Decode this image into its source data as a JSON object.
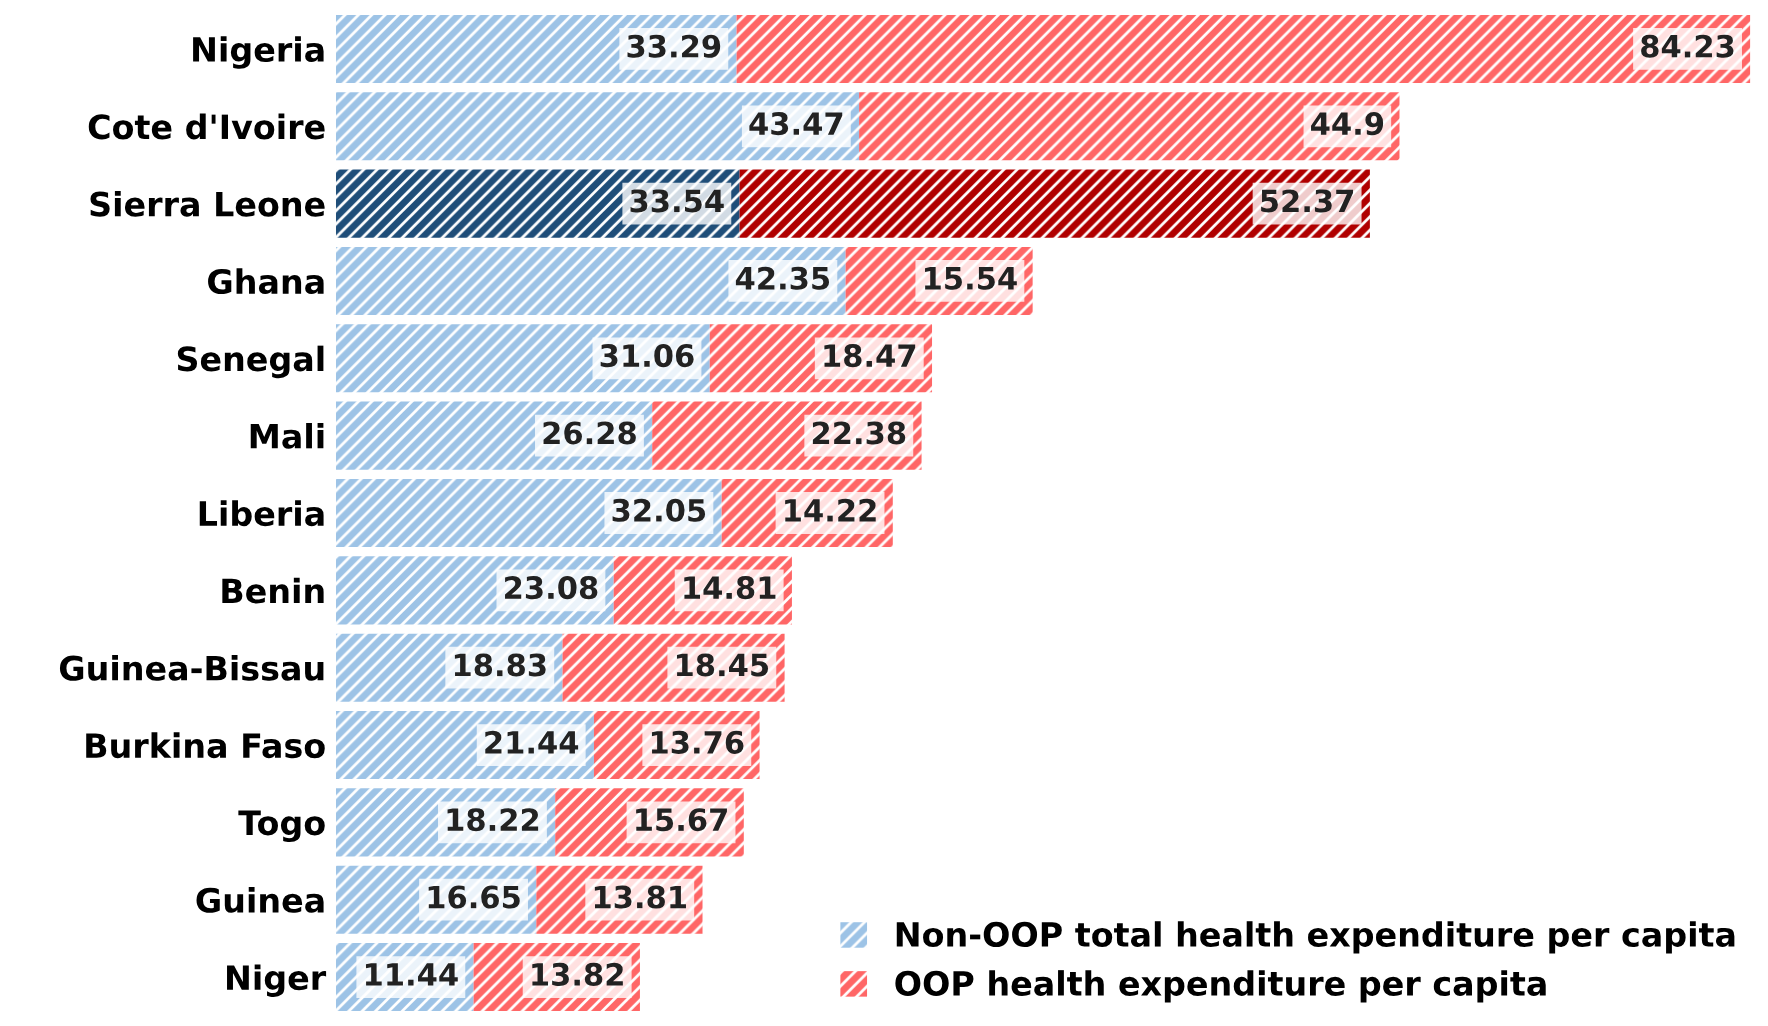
{
  "chart_data": {
    "type": "bar",
    "orientation": "horizontal",
    "stacked": true,
    "data_labels": true,
    "legend": "bottom right",
    "grid": false,
    "tick_labels": "y",
    "categories": [
      "Nigeria",
      "Cote d'Ivoire",
      "Sierra Leone",
      "Ghana",
      "Senegal",
      "Mali",
      "Liberia",
      "Benin",
      "Guinea-Bissau",
      "Burkina Faso",
      "Togo",
      "Guinea",
      "Niger"
    ],
    "series": [
      {
        "name": "Non-OOP total health expenditure per capita",
        "color": "#9dc3e6",
        "colors": [
          "#9dc3e6",
          "#9dc3e6",
          "#1f4e79",
          "#9dc3e6",
          "#9dc3e6",
          "#9dc3e6",
          "#9dc3e6",
          "#9dc3e6",
          "#9dc3e6",
          "#9dc3e6",
          "#9dc3e6",
          "#9dc3e6",
          "#9dc3e6"
        ],
        "values": [
          33.29,
          43.47,
          33.54,
          42.35,
          31.06,
          26.28,
          32.05,
          23.08,
          18.83,
          21.44,
          18.22,
          16.65,
          11.44
        ]
      },
      {
        "name": "OOP health expenditure per capita",
        "color": "#ff6666",
        "colors": [
          "#ff6666",
          "#ff6666",
          "#b00000",
          "#ff6666",
          "#ff6666",
          "#ff6666",
          "#ff6666",
          "#ff6666",
          "#ff6666",
          "#ff6666",
          "#ff6666",
          "#ff6666",
          "#ff6666"
        ],
        "values": [
          84.23,
          44.9,
          52.37,
          15.54,
          18.47,
          22.38,
          14.22,
          14.81,
          18.45,
          13.76,
          15.67,
          13.81,
          13.82
        ]
      }
    ]
  }
}
